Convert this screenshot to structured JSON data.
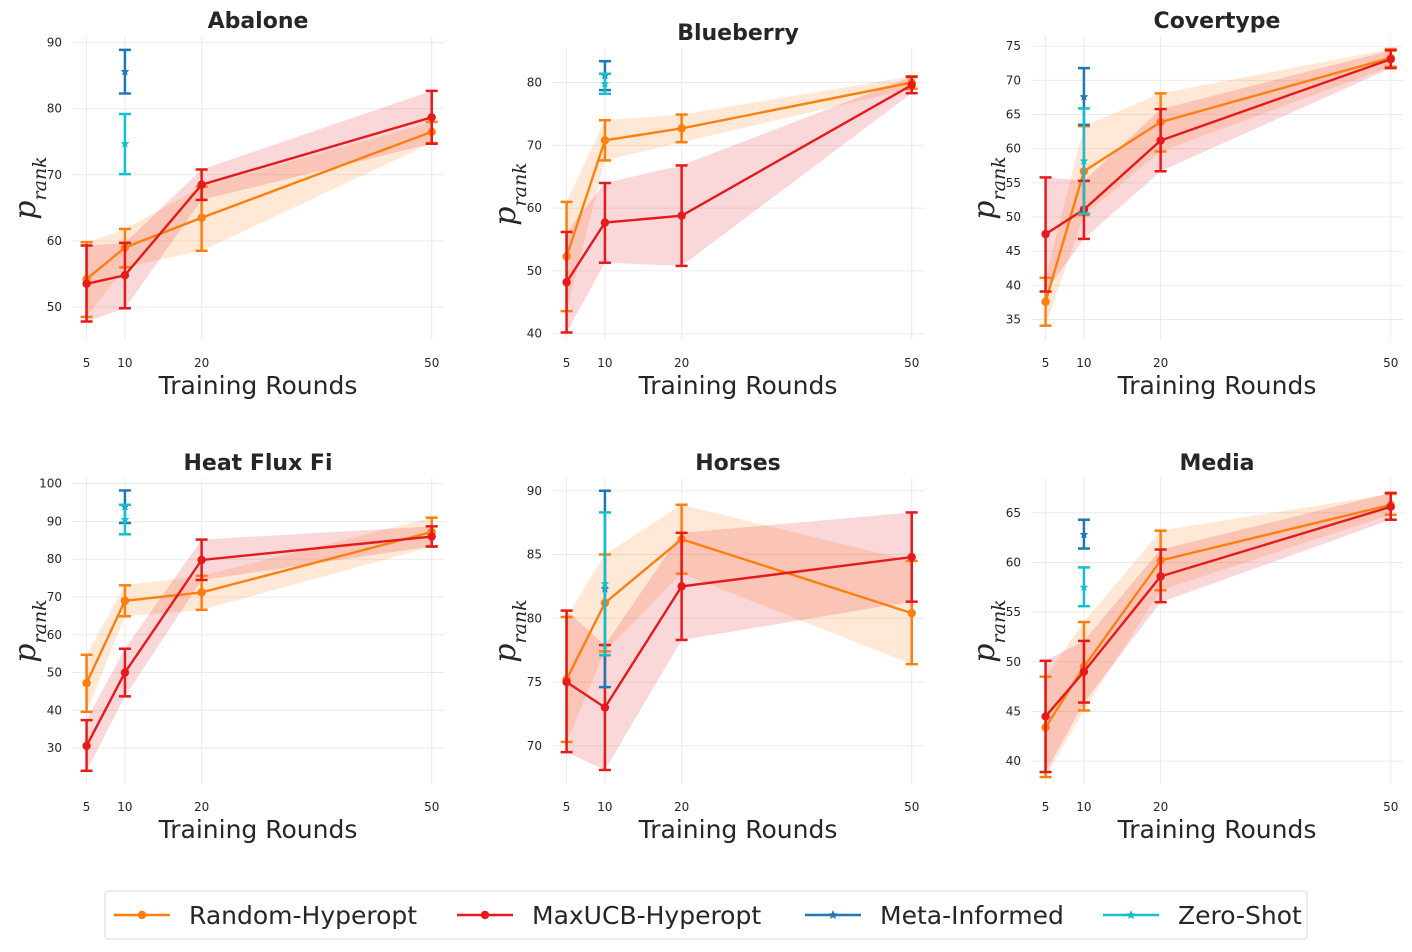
{
  "colors": {
    "random": "#ff7f0e",
    "maxucb": "#e41a1c",
    "meta": "#1f77b4",
    "zeroshot": "#17becf"
  },
  "legend": {
    "random": "Random-Hyperopt",
    "maxucb": "MaxUCB-Hyperopt",
    "meta": "Meta-Informed",
    "zeroshot": "Zero-Shot"
  },
  "chart_data": [
    {
      "type": "line",
      "title": "Abalone",
      "xlabel": "Training Rounds",
      "ylabel_main": "p",
      "ylabel_sub": "rank",
      "x": [
        5,
        10,
        20,
        50
      ],
      "xticks": [
        "5",
        "10",
        "20",
        "50"
      ],
      "ylim": [
        45,
        91
      ],
      "yticks": [
        50,
        60,
        70,
        80,
        90
      ],
      "series": [
        {
          "name": "Random-Hyperopt",
          "key": "random",
          "y": [
            54.2,
            59.0,
            63.5,
            76.5
          ],
          "lower": [
            48.5,
            56.0,
            58.5,
            74.8
          ],
          "upper": [
            59.8,
            61.8,
            68.2,
            78.0
          ]
        },
        {
          "name": "MaxUCB-Hyperopt",
          "key": "maxucb",
          "y": [
            53.5,
            54.8,
            68.5,
            78.7
          ],
          "lower": [
            47.8,
            49.8,
            66.2,
            74.7
          ],
          "upper": [
            59.3,
            59.7,
            70.8,
            82.7
          ]
        }
      ],
      "points": [
        {
          "name": "Meta-Informed",
          "key": "meta",
          "x": 10,
          "y": 85.6,
          "lower": 82.3,
          "upper": 88.9
        },
        {
          "name": "Zero-Shot",
          "key": "zeroshot",
          "x": 10,
          "y": 74.7,
          "lower": 70.1,
          "upper": 79.2
        }
      ]
    },
    {
      "type": "line",
      "title": "Blueberry",
      "xlabel": "Training Rounds",
      "ylabel_main": "p",
      "ylabel_sub": "rank",
      "x": [
        5,
        10,
        20,
        50
      ],
      "xticks": [
        "5",
        "10",
        "20",
        "50"
      ],
      "ylim": [
        39,
        85.5
      ],
      "yticks": [
        40,
        50,
        60,
        70,
        80
      ],
      "series": [
        {
          "name": "Random-Hyperopt",
          "key": "random",
          "y": [
            52.3,
            70.8,
            72.7,
            80.0
          ],
          "lower": [
            43.6,
            67.6,
            70.5,
            79.0
          ],
          "upper": [
            61.0,
            74.0,
            74.9,
            81.0
          ]
        },
        {
          "name": "MaxUCB-Hyperopt",
          "key": "maxucb",
          "y": [
            48.2,
            57.7,
            58.8,
            79.6
          ],
          "lower": [
            40.2,
            51.3,
            50.8,
            78.3
          ],
          "upper": [
            56.2,
            64.0,
            66.8,
            80.9
          ]
        }
      ],
      "points": [
        {
          "name": "Meta-Informed",
          "key": "meta",
          "x": 10,
          "y": 81.1,
          "lower": 78.8,
          "upper": 83.4
        },
        {
          "name": "Zero-Shot",
          "key": "zeroshot",
          "x": 10,
          "y": 79.8,
          "lower": 78.2,
          "upper": 81.4
        }
      ]
    },
    {
      "type": "line",
      "title": "Covertype",
      "xlabel": "Training Rounds",
      "ylabel_main": "p",
      "ylabel_sub": "rank",
      "x": [
        5,
        10,
        20,
        50
      ],
      "xticks": [
        "5",
        "10",
        "20",
        "50"
      ],
      "ylim": [
        32,
        76.5
      ],
      "yticks": [
        35,
        40,
        45,
        50,
        55,
        60,
        65,
        70,
        75
      ],
      "series": [
        {
          "name": "Random-Hyperopt",
          "key": "random",
          "y": [
            37.6,
            56.7,
            63.9,
            73.3
          ],
          "lower": [
            34.1,
            50.3,
            59.6,
            72.0
          ],
          "upper": [
            41.1,
            63.3,
            68.1,
            74.6
          ]
        },
        {
          "name": "MaxUCB-Hyperopt",
          "key": "maxucb",
          "y": [
            47.5,
            51.1,
            61.2,
            73.1
          ],
          "lower": [
            39.1,
            46.8,
            56.7,
            71.8
          ],
          "upper": [
            55.8,
            55.3,
            65.8,
            74.4
          ]
        }
      ],
      "points": [
        {
          "name": "Meta-Informed",
          "key": "meta",
          "x": 10,
          "y": 67.6,
          "lower": 63.5,
          "upper": 71.8
        },
        {
          "name": "Zero-Shot",
          "key": "zeroshot",
          "x": 10,
          "y": 58.2,
          "lower": 50.5,
          "upper": 65.9
        }
      ]
    },
    {
      "type": "line",
      "title": "Heat Flux Fi",
      "xlabel": "Training Rounds",
      "ylabel_main": "p",
      "ylabel_sub": "rank",
      "x": [
        5,
        10,
        20,
        50
      ],
      "xticks": [
        "5",
        "10",
        "20",
        "50"
      ],
      "ylim": [
        20.5,
        101.5
      ],
      "yticks": [
        30,
        40,
        50,
        60,
        70,
        80,
        90,
        100
      ],
      "series": [
        {
          "name": "Random-Hyperopt",
          "key": "random",
          "y": [
            47.2,
            69.0,
            71.2,
            87.2
          ],
          "lower": [
            39.6,
            64.9,
            66.6,
            83.3
          ],
          "upper": [
            54.7,
            73.1,
            75.6,
            91.0
          ]
        },
        {
          "name": "MaxUCB-Hyperopt",
          "key": "maxucb",
          "y": [
            30.6,
            50.0,
            79.8,
            86.0
          ],
          "lower": [
            24.0,
            43.7,
            74.5,
            83.4
          ],
          "upper": [
            37.4,
            56.3,
            85.2,
            88.7
          ]
        }
      ],
      "points": [
        {
          "name": "Meta-Informed",
          "key": "meta",
          "x": 10,
          "y": 93.9,
          "lower": 89.6,
          "upper": 98.2
        },
        {
          "name": "Zero-Shot",
          "key": "zeroshot",
          "x": 10,
          "y": 90.5,
          "lower": 86.6,
          "upper": 94.4
        }
      ]
    },
    {
      "type": "line",
      "title": "Horses",
      "xlabel": "Training Rounds",
      "ylabel_main": "p",
      "ylabel_sub": "rank",
      "x": [
        5,
        10,
        20,
        50
      ],
      "xticks": [
        "5",
        "10",
        "20",
        "50"
      ],
      "ylim": [
        67,
        91
      ],
      "yticks": [
        70,
        75,
        80,
        85,
        90
      ],
      "series": [
        {
          "name": "Random-Hyperopt",
          "key": "random",
          "y": [
            75.2,
            81.2,
            86.2,
            80.4
          ],
          "lower": [
            70.3,
            77.4,
            83.5,
            76.4
          ],
          "upper": [
            80.1,
            85.0,
            88.9,
            84.5
          ]
        },
        {
          "name": "MaxUCB-Hyperopt",
          "key": "maxucb",
          "y": [
            75.0,
            73.0,
            82.5,
            84.8
          ],
          "lower": [
            69.5,
            68.1,
            78.3,
            81.3
          ],
          "upper": [
            80.6,
            77.9,
            86.7,
            88.3
          ]
        }
      ],
      "points": [
        {
          "name": "Meta-Informed",
          "key": "meta",
          "x": 10,
          "y": 82.3,
          "lower": 74.6,
          "upper": 90.0
        },
        {
          "name": "Zero-Shot",
          "key": "zeroshot",
          "x": 10,
          "y": 82.7,
          "lower": 77.1,
          "upper": 88.3
        }
      ]
    },
    {
      "type": "line",
      "title": "Media",
      "xlabel": "Training Rounds",
      "ylabel_main": "p",
      "ylabel_sub": "rank",
      "x": [
        5,
        10,
        20,
        50
      ],
      "xticks": [
        "5",
        "10",
        "20",
        "50"
      ],
      "ylim": [
        37.7,
        68.5
      ],
      "yticks": [
        40,
        45,
        50,
        55,
        60,
        65
      ],
      "series": [
        {
          "name": "Random-Hyperopt",
          "key": "random",
          "y": [
            43.4,
            49.5,
            60.2,
            65.8
          ],
          "lower": [
            38.4,
            45.1,
            57.2,
            64.8
          ],
          "upper": [
            48.5,
            54.0,
            63.2,
            66.9
          ]
        },
        {
          "name": "MaxUCB-Hyperopt",
          "key": "maxucb",
          "y": [
            44.5,
            49.0,
            58.6,
            65.6
          ],
          "lower": [
            38.9,
            45.9,
            56.0,
            64.3
          ],
          "upper": [
            50.1,
            52.1,
            61.3,
            67.0
          ]
        }
      ],
      "points": [
        {
          "name": "Meta-Informed",
          "key": "meta",
          "x": 10,
          "y": 62.8,
          "lower": 61.4,
          "upper": 64.3
        },
        {
          "name": "Zero-Shot",
          "key": "zeroshot",
          "x": 10,
          "y": 57.5,
          "lower": 55.6,
          "upper": 59.5
        }
      ]
    }
  ]
}
